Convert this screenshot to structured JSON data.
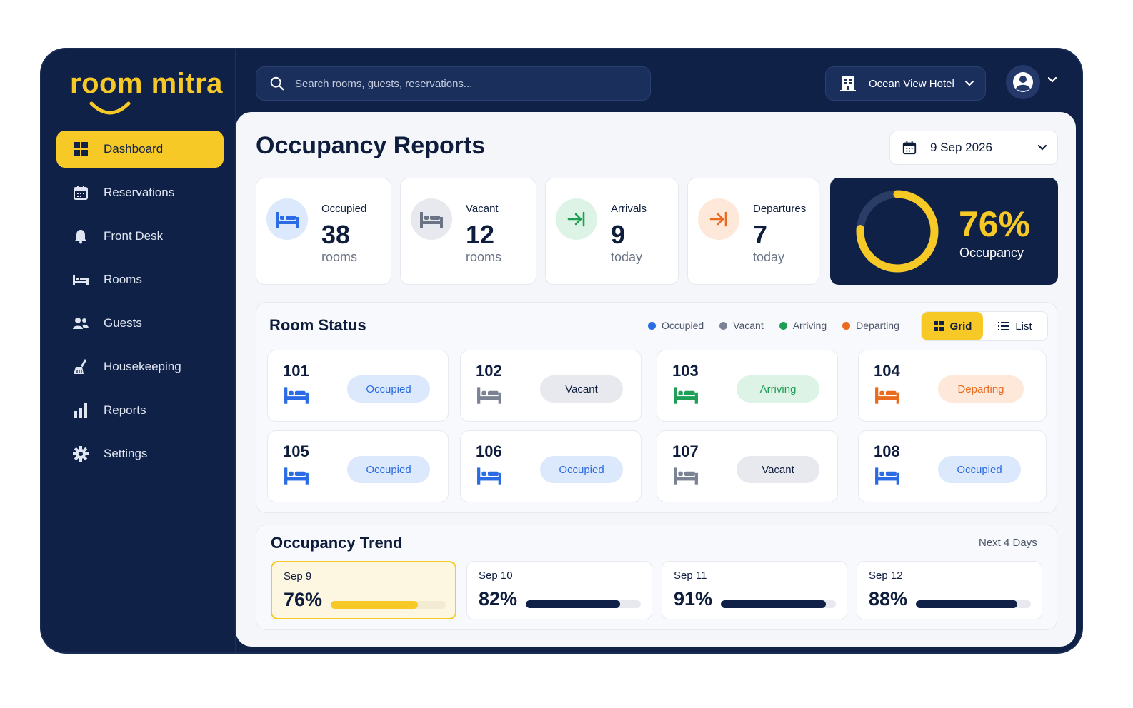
{
  "brand": {
    "name": "room mitra",
    "accent": "#f7c926",
    "navy": "#0f2147"
  },
  "search": {
    "placeholder": "Search rooms, guests, reservations..."
  },
  "hotel": {
    "name": "Ocean View Hotel",
    "icon": "building-icon"
  },
  "user": {
    "icon": "user-avatar-icon"
  },
  "sidebar": {
    "items": [
      {
        "label": "Dashboard",
        "icon": "grid-icon",
        "active": true
      },
      {
        "label": "Reservations",
        "icon": "calendar-icon"
      },
      {
        "label": "Front Desk",
        "icon": "bell-icon"
      },
      {
        "label": "Rooms",
        "icon": "bed-icon"
      },
      {
        "label": "Guests",
        "icon": "users-icon"
      },
      {
        "label": "Housekeeping",
        "icon": "broom-icon"
      },
      {
        "label": "Reports",
        "icon": "bar-chart-icon"
      },
      {
        "label": "Settings",
        "icon": "gear-icon"
      }
    ]
  },
  "page": {
    "title": "Occupancy Reports",
    "date": "9 Sep 2026"
  },
  "stats": [
    {
      "label": "Occupied",
      "value": "38",
      "unit": "rooms",
      "icon": "bed-icon",
      "color": "#2b6ce4"
    },
    {
      "label": "Vacant",
      "value": "12",
      "unit": "rooms",
      "icon": "bed-icon",
      "color": "#6b7484"
    },
    {
      "label": "Arrivals",
      "value": "9",
      "unit": "today",
      "icon": "arrival-icon",
      "color": "#1f9e55"
    },
    {
      "label": "Departures",
      "value": "7",
      "unit": "today",
      "icon": "departure-icon",
      "color": "#ea6a1e"
    }
  ],
  "occupancy": {
    "percent": "76%",
    "label": "Occupancy",
    "fraction": 0.76
  },
  "room_status": {
    "title": "Room Status",
    "legend": [
      {
        "label": "Occupied",
        "color": "#2b6ce4"
      },
      {
        "label": "Vacant",
        "color": "#7a8293"
      },
      {
        "label": "Arriving",
        "color": "#1f9e55"
      },
      {
        "label": "Departing",
        "color": "#ea6a1e"
      }
    ],
    "view_toggle": {
      "grid": "Grid",
      "list": "List",
      "selected": "Grid"
    },
    "rooms": [
      {
        "number": "101",
        "status": "Occupied"
      },
      {
        "number": "102",
        "status": "Vacant"
      },
      {
        "number": "103",
        "status": "Arriving"
      },
      {
        "number": "104",
        "status": "Departing"
      },
      {
        "number": "105",
        "status": "Occupied"
      },
      {
        "number": "106",
        "status": "Occupied"
      },
      {
        "number": "107",
        "status": "Vacant"
      },
      {
        "number": "108",
        "status": "Occupied"
      }
    ]
  },
  "trend": {
    "title": "Occupancy Trend",
    "subtitle": "Next 4 Days",
    "days": [
      {
        "date": "Sep 9",
        "percent": "76%",
        "value": 0.76
      },
      {
        "date": "Sep 10",
        "percent": "82%",
        "value": 0.82
      },
      {
        "date": "Sep 11",
        "percent": "91%",
        "value": 0.91
      },
      {
        "date": "Sep 12",
        "percent": "88%",
        "value": 0.88
      }
    ]
  }
}
